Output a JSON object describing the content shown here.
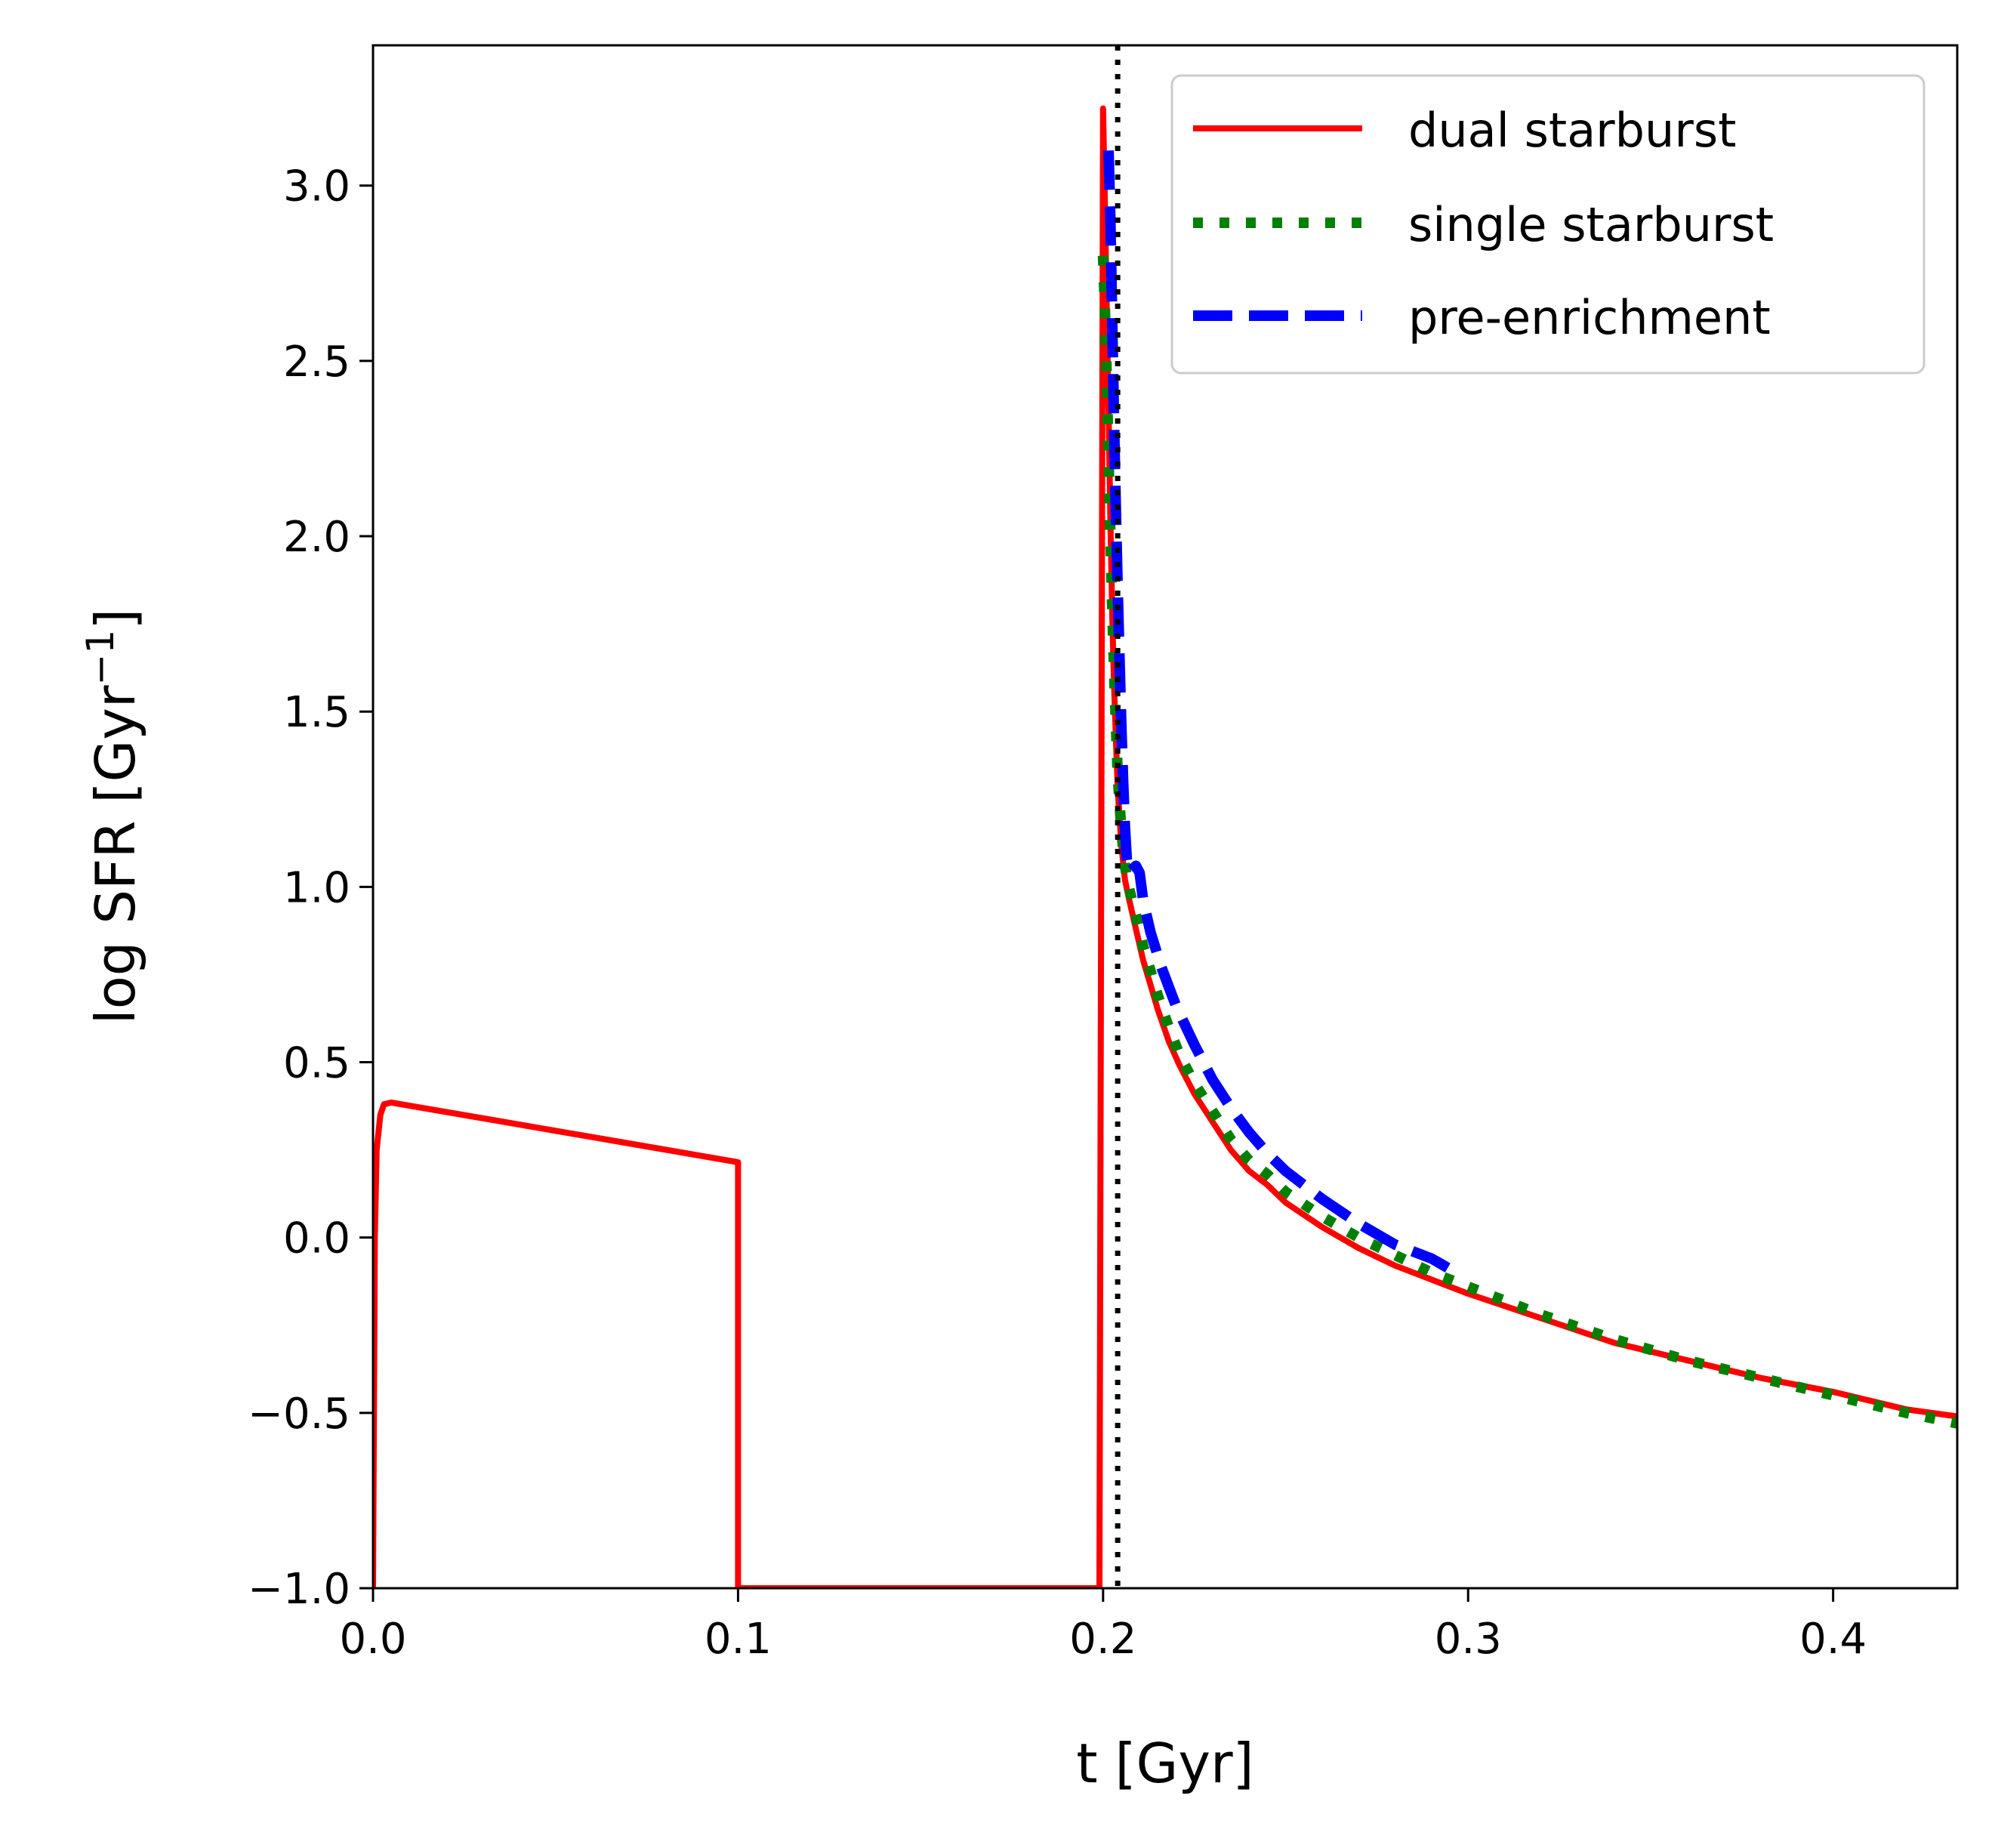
{
  "chart_data": {
    "type": "line",
    "xlabel": "t [Gyr]",
    "ylabel_main": "log SFR [Gyr",
    "ylabel_sup": "−1",
    "ylabel_close": "]",
    "xlim": [
      0.0,
      0.434
    ],
    "ylim": [
      -1.0,
      3.4
    ],
    "xticks": [
      0.0,
      0.1,
      0.2,
      0.3,
      0.4
    ],
    "xtick_labels": [
      "0.0",
      "0.1",
      "0.2",
      "0.3",
      "0.4"
    ],
    "yticks": [
      -1.0,
      -0.5,
      0.0,
      0.5,
      1.0,
      1.5,
      2.0,
      2.5,
      3.0
    ],
    "ytick_labels": [
      "−1.0",
      "−0.5",
      "0.0",
      "0.5",
      "1.0",
      "1.5",
      "2.0",
      "2.5",
      "3.0"
    ],
    "vline": {
      "x": 0.204,
      "style": "dotted",
      "color": "#000000"
    },
    "legend_position": "top-right",
    "series": [
      {
        "name": "dual starburst",
        "color": "#ff0000",
        "style": "solid",
        "x": [
          0.0,
          0.0005,
          0.001,
          0.002,
          0.003,
          0.005,
          0.1,
          0.1,
          0.199,
          0.2,
          0.2005,
          0.201,
          0.2015,
          0.202,
          0.2025,
          0.203,
          0.2035,
          0.204,
          0.205,
          0.206,
          0.207,
          0.209,
          0.211,
          0.213,
          0.215,
          0.218,
          0.221,
          0.225,
          0.23,
          0.235,
          0.24,
          0.245,
          0.25,
          0.26,
          0.27,
          0.28,
          0.29,
          0.3,
          0.32,
          0.34,
          0.36,
          0.38,
          0.4,
          0.42,
          0.434
        ],
        "y": [
          -1.0,
          0.0,
          0.25,
          0.35,
          0.38,
          0.385,
          0.215,
          -1.0,
          -1.0,
          3.22,
          2.95,
          2.65,
          2.35,
          2.05,
          1.78,
          1.58,
          1.43,
          1.28,
          1.12,
          1.02,
          0.97,
          0.88,
          0.79,
          0.72,
          0.65,
          0.56,
          0.49,
          0.41,
          0.33,
          0.25,
          0.19,
          0.15,
          0.1,
          0.03,
          -0.03,
          -0.08,
          -0.12,
          -0.16,
          -0.23,
          -0.3,
          -0.35,
          -0.4,
          -0.44,
          -0.49,
          -0.51
        ]
      },
      {
        "name": "single starburst",
        "color": "#008000",
        "style": "dotted",
        "x": [
          0.2,
          0.2005,
          0.201,
          0.2015,
          0.202,
          0.2025,
          0.203,
          0.2035,
          0.204,
          0.205,
          0.206,
          0.207,
          0.209,
          0.211,
          0.213,
          0.215,
          0.218,
          0.221,
          0.225,
          0.23,
          0.235,
          0.24,
          0.245,
          0.25,
          0.26,
          0.27,
          0.28,
          0.29,
          0.3,
          0.32,
          0.34,
          0.36,
          0.38,
          0.4,
          0.42,
          0.434
        ],
        "y": [
          2.8,
          2.65,
          2.45,
          2.22,
          2.0,
          1.8,
          1.62,
          1.47,
          1.32,
          1.16,
          1.06,
          1.0,
          0.92,
          0.83,
          0.76,
          0.69,
          0.6,
          0.52,
          0.44,
          0.36,
          0.28,
          0.22,
          0.18,
          0.13,
          0.06,
          0.0,
          -0.05,
          -0.1,
          -0.14,
          -0.22,
          -0.29,
          -0.35,
          -0.4,
          -0.45,
          -0.5,
          -0.53
        ]
      },
      {
        "name": "pre-enrichment",
        "color": "#0000ff",
        "style": "dashed",
        "x": [
          0.2015,
          0.202,
          0.2025,
          0.203,
          0.2035,
          0.204,
          0.2045,
          0.205,
          0.2055,
          0.206,
          0.2065,
          0.207,
          0.208,
          0.209,
          0.21,
          0.211,
          0.213,
          0.216,
          0.22,
          0.225,
          0.23,
          0.235,
          0.24,
          0.245,
          0.25,
          0.26,
          0.27,
          0.28,
          0.29,
          0.295
        ],
        "y": [
          3.1,
          2.9,
          2.62,
          2.33,
          2.08,
          1.85,
          1.65,
          1.46,
          1.3,
          1.17,
          1.08,
          1.04,
          1.05,
          1.06,
          1.04,
          0.96,
          0.87,
          0.77,
          0.66,
          0.55,
          0.45,
          0.37,
          0.3,
          0.24,
          0.19,
          0.11,
          0.04,
          -0.02,
          -0.06,
          -0.09
        ]
      }
    ]
  }
}
